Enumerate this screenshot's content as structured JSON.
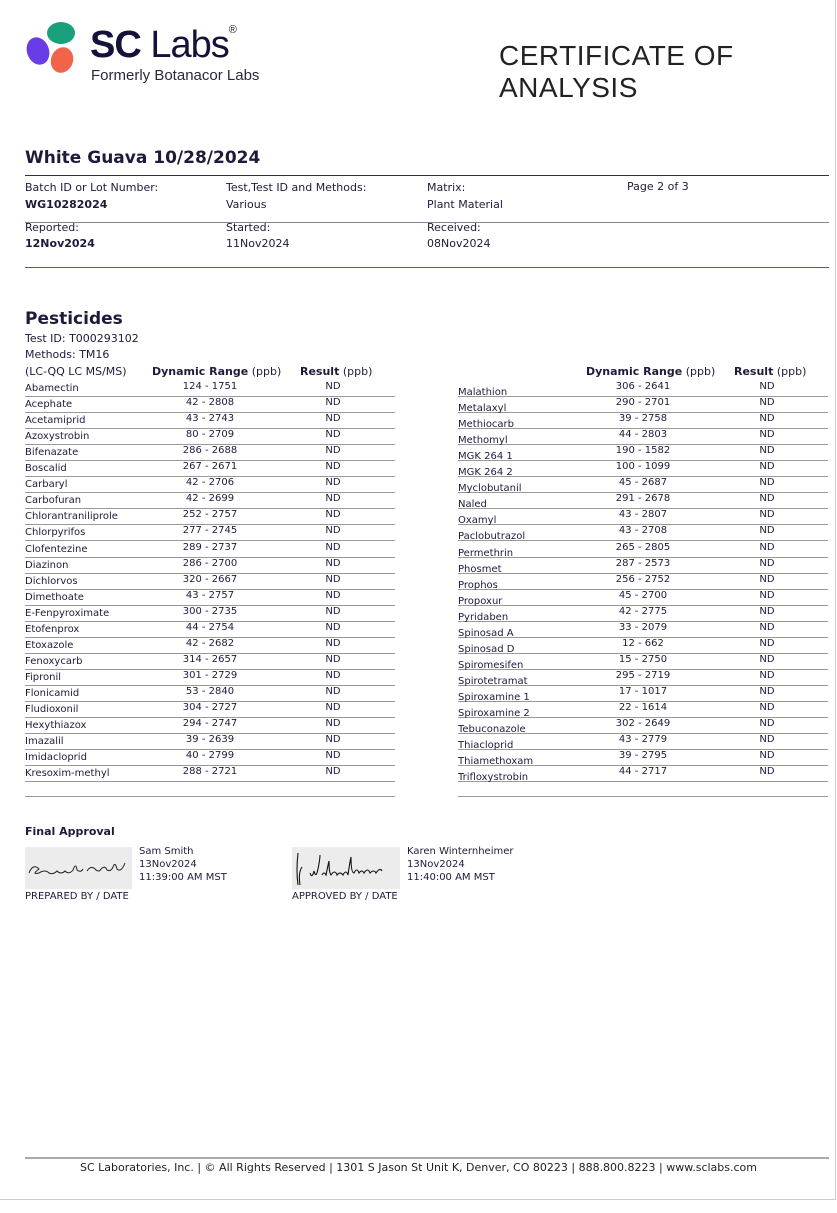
{
  "header": {
    "logo_main": "SC",
    "logo_labs": "Labs",
    "logo_reg": "®",
    "logo_sub": "Formerly Botanacor Labs",
    "doc_title": "CERTIFICATE OF ANALYSIS"
  },
  "sample": {
    "title": "White Guava 10/28/2024",
    "batch_label": "Batch ID or Lot Number:",
    "batch_value": "WG10282024",
    "test_label": "Test,Test ID and Methods:",
    "test_value": "Various",
    "matrix_label": "Matrix:",
    "matrix_value": "Plant Material",
    "page": "Page 2 of 3",
    "reported_label": "Reported:",
    "reported_value": "12Nov2024",
    "started_label": "Started:",
    "started_value": "11Nov2024",
    "received_label": "Received:",
    "received_value": "08Nov2024"
  },
  "pesticides": {
    "title": "Pesticides",
    "test_id": "Test ID: T000293102",
    "methods": "Methods: TM16",
    "instrument": "(LC-QQ LC MS/MS)",
    "col_range_bold": "Dynamic Range",
    "col_range_unit": " (ppb)",
    "col_result_bold": "Result",
    "col_result_unit": " (ppb)",
    "left": [
      [
        "Abamectin",
        "124 - 1751",
        "ND"
      ],
      [
        "Acephate",
        "42 - 2808",
        "ND"
      ],
      [
        "Acetamiprid",
        "43 - 2743",
        "ND"
      ],
      [
        "Azoxystrobin",
        "80 - 2709",
        "ND"
      ],
      [
        "Bifenazate",
        "286 - 2688",
        "ND"
      ],
      [
        "Boscalid",
        "267 - 2671",
        "ND"
      ],
      [
        "Carbaryl",
        "42 - 2706",
        "ND"
      ],
      [
        "Carbofuran",
        "42 - 2699",
        "ND"
      ],
      [
        "Chlorantraniliprole",
        "252 - 2757",
        "ND"
      ],
      [
        "Chlorpyrifos",
        "277 - 2745",
        "ND"
      ],
      [
        "Clofentezine",
        "289 - 2737",
        "ND"
      ],
      [
        "Diazinon",
        "286 - 2700",
        "ND"
      ],
      [
        "Dichlorvos",
        "320 - 2667",
        "ND"
      ],
      [
        "Dimethoate",
        "43 - 2757",
        "ND"
      ],
      [
        "E-Fenpyroximate",
        "300 - 2735",
        "ND"
      ],
      [
        "Etofenprox",
        "44 - 2754",
        "ND"
      ],
      [
        "Etoxazole",
        "42 - 2682",
        "ND"
      ],
      [
        "Fenoxycarb",
        "314 - 2657",
        "ND"
      ],
      [
        "Fipronil",
        "301 - 2729",
        "ND"
      ],
      [
        "Flonicamid",
        "53 - 2840",
        "ND"
      ],
      [
        "Fludioxonil",
        "304 - 2727",
        "ND"
      ],
      [
        "Hexythiazox",
        "294 - 2747",
        "ND"
      ],
      [
        "Imazalil",
        "39 - 2639",
        "ND"
      ],
      [
        "Imidacloprid",
        "40 - 2799",
        "ND"
      ],
      [
        "Kresoxim-methyl",
        "288 - 2721",
        "ND"
      ]
    ],
    "right": [
      [
        "Malathion",
        "306 - 2641",
        "ND"
      ],
      [
        "Metalaxyl",
        "290 - 2701",
        "ND"
      ],
      [
        "Methiocarb",
        "39 - 2758",
        "ND"
      ],
      [
        "Methomyl",
        "44 - 2803",
        "ND"
      ],
      [
        "MGK 264 1",
        "190 - 1582",
        "ND"
      ],
      [
        "MGK 264 2",
        "100 - 1099",
        "ND"
      ],
      [
        "Myclobutanil",
        "45 - 2687",
        "ND"
      ],
      [
        "Naled",
        "291 - 2678",
        "ND"
      ],
      [
        "Oxamyl",
        "43 - 2807",
        "ND"
      ],
      [
        "Paclobutrazol",
        "43 - 2708",
        "ND"
      ],
      [
        "Permethrin",
        "265 - 2805",
        "ND"
      ],
      [
        "Phosmet",
        "287 - 2573",
        "ND"
      ],
      [
        "Prophos",
        "256 - 2752",
        "ND"
      ],
      [
        "Propoxur",
        "45 - 2700",
        "ND"
      ],
      [
        "Pyridaben",
        "42 - 2775",
        "ND"
      ],
      [
        "Spinosad A",
        "33 - 2079",
        "ND"
      ],
      [
        "Spinosad D",
        "12 - 662",
        "ND"
      ],
      [
        "Spiromesifen",
        "15 - 2750",
        "ND"
      ],
      [
        "Spirotetramat",
        "295 - 2719",
        "ND"
      ],
      [
        "Spiroxamine 1",
        "17 - 1017",
        "ND"
      ],
      [
        "Spiroxamine 2",
        "22 - 1614",
        "ND"
      ],
      [
        "Tebuconazole",
        "302 - 2649",
        "ND"
      ],
      [
        "Thiacloprid",
        "43 - 2779",
        "ND"
      ],
      [
        "Thiamethoxam",
        "39 - 2795",
        "ND"
      ],
      [
        "Trifloxystrobin",
        "44 - 2717",
        "ND"
      ]
    ]
  },
  "approval": {
    "title": "Final Approval",
    "prepared": {
      "name": "Sam Smith",
      "date": "13Nov2024",
      "time": "11:39:00 AM MST",
      "label": "PREPARED BY / DATE",
      "signature": "Samantha Smith"
    },
    "approved": {
      "name": "Karen Winternheimer",
      "date": "13Nov2024",
      "time": "11:40:00 AM MST",
      "label": "APPROVED BY / DATE",
      "signature": "K Winternheimer"
    }
  },
  "footer": {
    "text": "SC Laboratories, Inc. | © All Rights Reserved | 1301 S Jason St Unit K, Denver, CO 80223 | 888.800.8223 | www.sclabs.com"
  },
  "colors": {
    "text": "#1e1b3a",
    "logo_purple": "#6a3ce8",
    "logo_green": "#1aa07a",
    "logo_coral": "#f2644a"
  }
}
